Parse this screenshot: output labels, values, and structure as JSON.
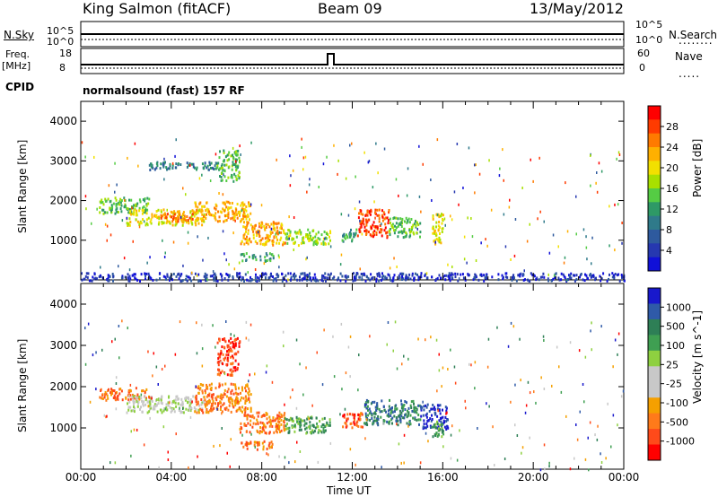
{
  "header": {
    "station": "King Salmon (fitACF)",
    "beam": "Beam 09",
    "date": "13/May/2012"
  },
  "side_labels": {
    "nsky": "N.Sky",
    "nsearch": "N.Search",
    "freq_line1": "Freq.",
    "freq_line2": "[MHz]",
    "nave": "Nave",
    "cpid": "CPID",
    "cpid_value": "normalsound (fast) 157 RF",
    "noise_ticks_left": [
      "10^5",
      "10^0"
    ],
    "noise_ticks_right": [
      "10^5",
      "10^0"
    ],
    "freq_ticks": [
      "18",
      "8"
    ],
    "nave_ticks": [
      "60",
      "0"
    ]
  },
  "chart_data": [
    {
      "type": "heatmap",
      "name": "power",
      "xlabel": "",
      "ylabel": "Slant Range [km]",
      "xlim": [
        0,
        24
      ],
      "ylim": [
        0,
        4500
      ],
      "yticks": [
        "1000",
        "2000",
        "3000",
        "4000"
      ],
      "colorbar": {
        "label": "Power [dB]",
        "ticks": [
          "28",
          "24",
          "20",
          "16",
          "12",
          "8",
          "4"
        ],
        "colors": [
          "#ff0000",
          "#ff3b00",
          "#ff7a00",
          "#ffb000",
          "#f2e000",
          "#a8e000",
          "#55cc44",
          "#2e9966",
          "#2f7a8a",
          "#2e5a9e",
          "#2638b0",
          "#1010d8"
        ]
      },
      "regions": [
        {
          "x": [
            0.8,
            3.0
          ],
          "y": [
            1700,
            2100
          ],
          "level": 6
        },
        {
          "x": [
            2.0,
            5.5
          ],
          "y": [
            1400,
            1800
          ],
          "level": 4
        },
        {
          "x": [
            3.5,
            5.0
          ],
          "y": [
            1500,
            1700
          ],
          "level": 2
        },
        {
          "x": [
            5.0,
            7.5
          ],
          "y": [
            1500,
            2000
          ],
          "level": 3
        },
        {
          "x": [
            3.0,
            6.0
          ],
          "y": [
            2800,
            3000
          ],
          "level": 8
        },
        {
          "x": [
            6.0,
            7.0
          ],
          "y": [
            2500,
            3300
          ],
          "level": 6
        },
        {
          "x": [
            7.0,
            9.0
          ],
          "y": [
            900,
            1500
          ],
          "level": 3
        },
        {
          "x": [
            9.0,
            11.0
          ],
          "y": [
            900,
            1300
          ],
          "level": 5
        },
        {
          "x": [
            11.5,
            12.2
          ],
          "y": [
            1000,
            1300
          ],
          "level": 7
        },
        {
          "x": [
            12.2,
            13.6
          ],
          "y": [
            1100,
            1800
          ],
          "level": 1
        },
        {
          "x": [
            13.6,
            15.0
          ],
          "y": [
            1100,
            1600
          ],
          "level": 6
        },
        {
          "x": [
            15.5,
            16.0
          ],
          "y": [
            900,
            1700
          ],
          "level": 4
        },
        {
          "x": [
            7.0,
            8.5
          ],
          "y": [
            500,
            700
          ],
          "level": 7
        },
        {
          "x": [
            0.0,
            24.0
          ],
          "y": [
            0,
            200
          ],
          "level": 10
        }
      ]
    },
    {
      "type": "heatmap",
      "name": "velocity",
      "xlabel": "Time UT",
      "ylabel": "Slant Range [km]",
      "xlim": [
        0,
        24
      ],
      "ylim": [
        0,
        4500
      ],
      "xticks": [
        "00:00",
        "04:00",
        "08:00",
        "12:00",
        "16:00",
        "20:00",
        "00:00"
      ],
      "yticks": [
        "1000",
        "2000",
        "3000",
        "4000"
      ],
      "colorbar": {
        "label": "Velocity [m s^-1]",
        "ticks": [
          "1000",
          "500",
          "100",
          "25",
          "-25",
          "-100",
          "-500",
          "-1000"
        ],
        "colors": [
          "#1818cc",
          "#2f5aa8",
          "#2e7f56",
          "#3f9f52",
          "#8ed040",
          "#c8c8c8",
          "#c8c8c8",
          "#f5a000",
          "#ff7a1a",
          "#ff4a1a",
          "#ff0000"
        ]
      },
      "regions": [
        {
          "x": [
            0.8,
            3.0
          ],
          "y": [
            1700,
            2000
          ],
          "level": 8
        },
        {
          "x": [
            2.0,
            5.5
          ],
          "y": [
            1400,
            1800
          ],
          "level": 5
        },
        {
          "x": [
            5.0,
            7.5
          ],
          "y": [
            1400,
            2100
          ],
          "level": 8
        },
        {
          "x": [
            6.0,
            7.0
          ],
          "y": [
            2300,
            3200
          ],
          "level": 9
        },
        {
          "x": [
            7.0,
            9.0
          ],
          "y": [
            900,
            1400
          ],
          "level": 8
        },
        {
          "x": [
            9.0,
            11.0
          ],
          "y": [
            900,
            1300
          ],
          "level": 3
        },
        {
          "x": [
            11.5,
            12.5
          ],
          "y": [
            1000,
            1400
          ],
          "level": 9
        },
        {
          "x": [
            12.5,
            15.0
          ],
          "y": [
            1100,
            1700
          ],
          "level": 2
        },
        {
          "x": [
            15.0,
            16.2
          ],
          "y": [
            1000,
            1600
          ],
          "level": 0
        },
        {
          "x": [
            15.5,
            16.0
          ],
          "y": [
            800,
            1200
          ],
          "level": 3
        },
        {
          "x": [
            7.0,
            8.5
          ],
          "y": [
            500,
            700
          ],
          "level": 8
        }
      ]
    }
  ]
}
